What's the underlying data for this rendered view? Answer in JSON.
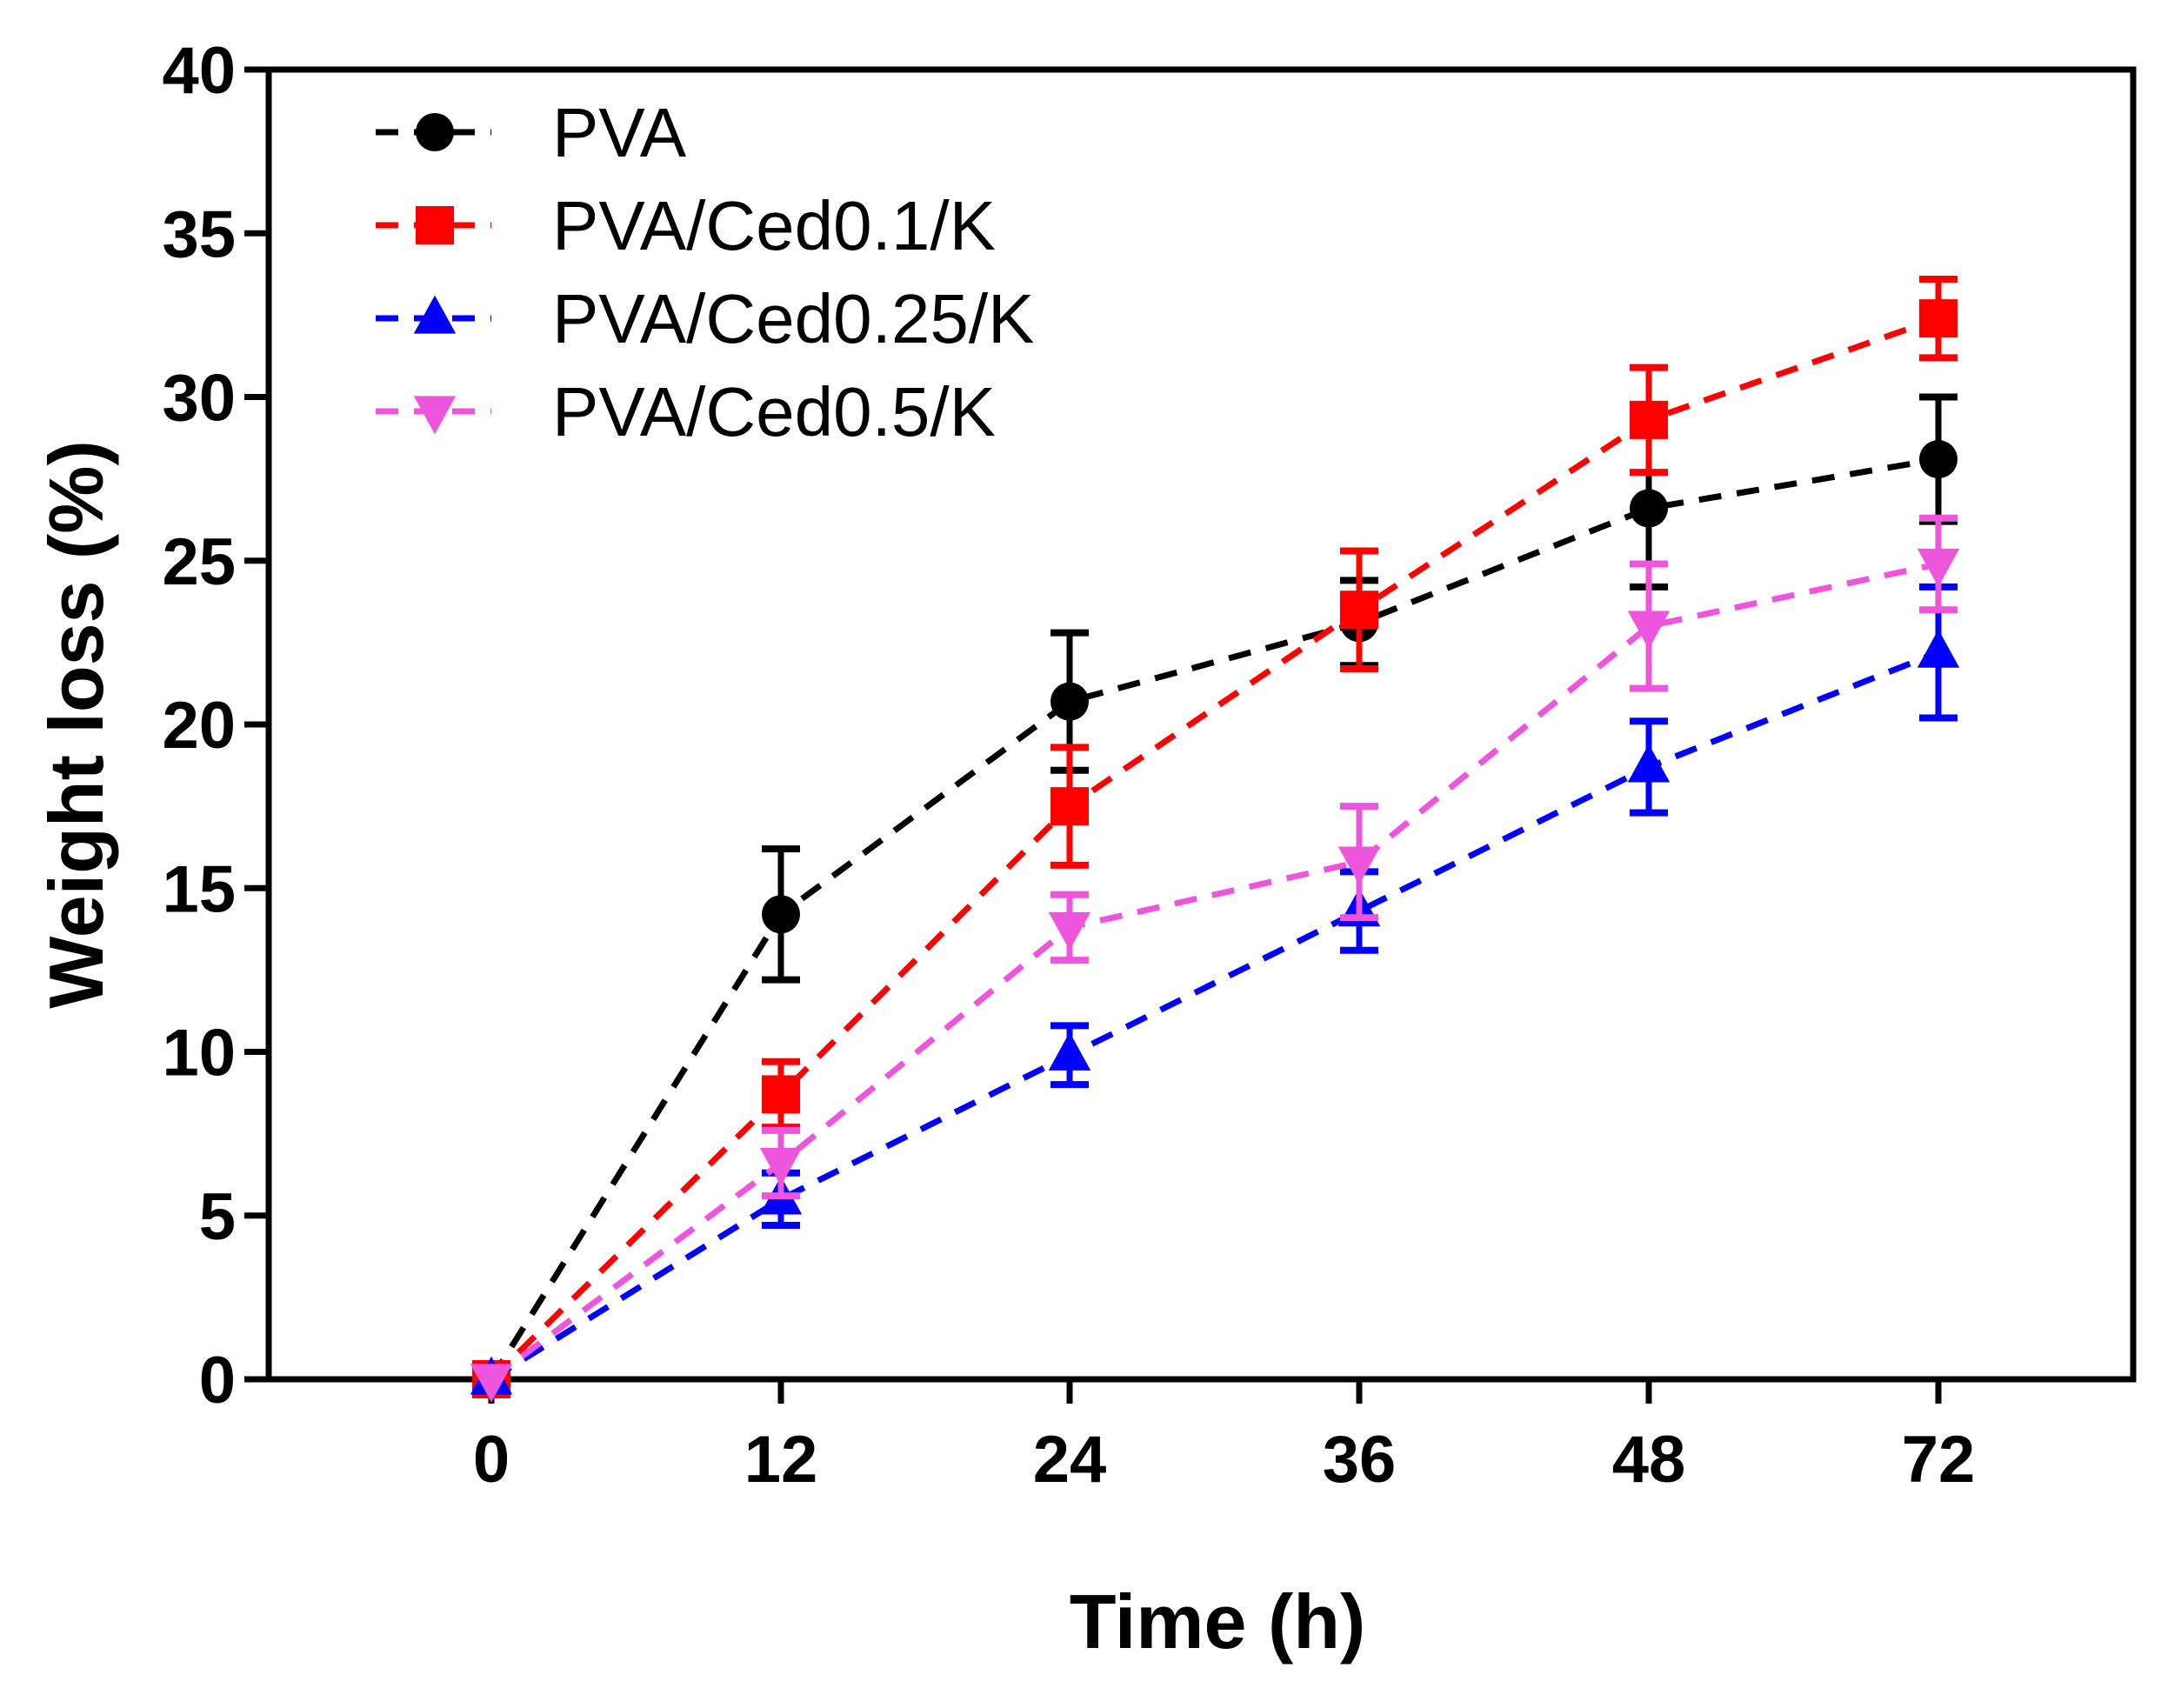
{
  "chart_data": {
    "type": "line",
    "title": "",
    "xlabel": "Time (h)",
    "ylabel": "Weight loss (%)",
    "categories": [
      "0",
      "12",
      "24",
      "36",
      "48",
      "72"
    ],
    "ylim": [
      0,
      40
    ],
    "yticks": [
      0,
      5,
      10,
      15,
      20,
      25,
      30,
      35,
      40
    ],
    "grid": false,
    "legend_position": "top-left",
    "series": [
      {
        "name": "PVA",
        "color": "#000000",
        "marker": "circle",
        "values": [
          0,
          14.2,
          20.7,
          23.1,
          26.6,
          28.1
        ],
        "errors": [
          0,
          2.0,
          2.1,
          1.3,
          2.4,
          1.9
        ]
      },
      {
        "name": "PVA/Ced0.1/K",
        "color": "#ff0000",
        "marker": "square",
        "values": [
          0,
          8.7,
          17.5,
          23.5,
          29.3,
          32.4
        ],
        "errors": [
          0,
          1.0,
          1.8,
          1.8,
          1.6,
          1.2
        ]
      },
      {
        "name": "PVA/Ced0.25/K",
        "color": "#0000ff",
        "marker": "triangle-up",
        "values": [
          0,
          5.5,
          9.9,
          14.3,
          18.7,
          22.2
        ],
        "errors": [
          0,
          0.8,
          0.9,
          1.2,
          1.4,
          2.0
        ]
      },
      {
        "name": "PVA/Ced0.5/K",
        "color": "#ee55dd",
        "marker": "triangle-down",
        "values": [
          0,
          6.6,
          13.8,
          15.8,
          23.0,
          24.9
        ],
        "errors": [
          0,
          1.0,
          1.0,
          1.7,
          1.9,
          1.4
        ]
      }
    ]
  }
}
